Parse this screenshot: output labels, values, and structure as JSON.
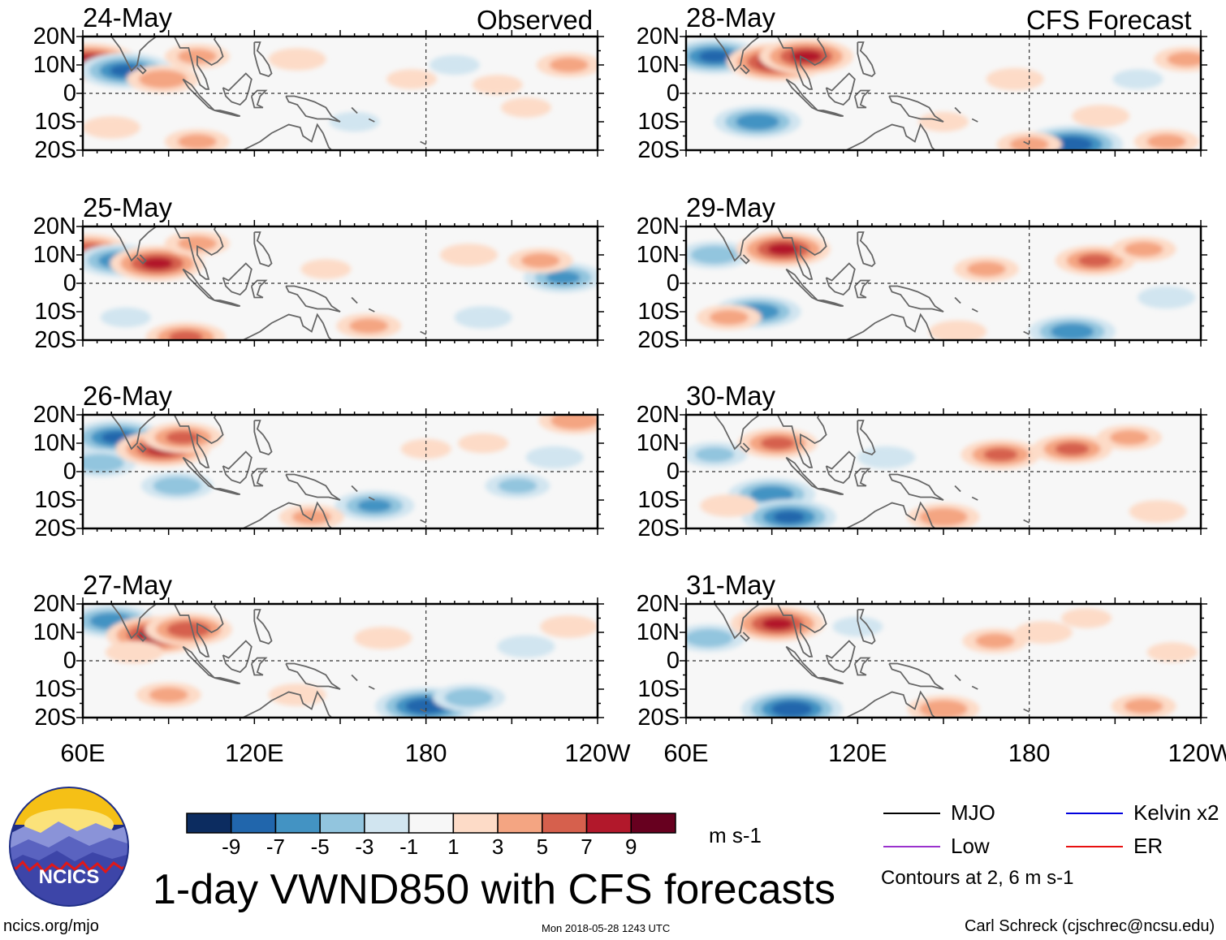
{
  "chart_data": {
    "type": "heatmap",
    "title": "1-day VWND850 with CFS forecasts",
    "units": "m s-1",
    "left_column_label": "Observed",
    "right_column_label": "CFS Forecast",
    "latitude_ticks": [
      "20N",
      "10N",
      "0",
      "10S",
      "20S"
    ],
    "longitude_ticks": [
      "60E",
      "120E",
      "180",
      "120W"
    ],
    "lat_range": [
      -20,
      20
    ],
    "lon_range": [
      60,
      240
    ],
    "colorbar": {
      "ticks": [
        "-9",
        "-7",
        "-5",
        "-3",
        "-1",
        "1",
        "3",
        "5",
        "7",
        "9"
      ],
      "colors": [
        "#0c2c60",
        "#2166ac",
        "#4393c3",
        "#92c5de",
        "#d1e5f0",
        "#f7f7f7",
        "#fddbc7",
        "#f4a582",
        "#d6604d",
        "#b2182b",
        "#67001f"
      ]
    },
    "panels": [
      {
        "date": "24-May",
        "column": "Observed",
        "row": 0,
        "features": [
          {
            "lon": 62,
            "lat": 11,
            "value": 9
          },
          {
            "lon": 75,
            "lat": 8,
            "value": -8
          },
          {
            "lon": 88,
            "lat": 5,
            "value": 5
          },
          {
            "lon": 100,
            "lat": 13,
            "value": 4
          },
          {
            "lon": 135,
            "lat": 12,
            "value": 3
          },
          {
            "lon": 175,
            "lat": 5,
            "value": 2
          },
          {
            "lon": 230,
            "lat": 10,
            "value": 4
          },
          {
            "lon": 205,
            "lat": 3,
            "value": 2
          },
          {
            "lon": 70,
            "lat": -12,
            "value": 3
          },
          {
            "lon": 100,
            "lat": -17,
            "value": 4
          },
          {
            "lon": 155,
            "lat": -10,
            "value": -2
          },
          {
            "lon": 215,
            "lat": -5,
            "value": 2
          },
          {
            "lon": 190,
            "lat": 10,
            "value": -2
          }
        ]
      },
      {
        "date": "25-May",
        "column": "Observed",
        "row": 1,
        "features": [
          {
            "lon": 62,
            "lat": 12,
            "value": 6
          },
          {
            "lon": 73,
            "lat": 8,
            "value": -7
          },
          {
            "lon": 86,
            "lat": 7,
            "value": 8
          },
          {
            "lon": 100,
            "lat": 14,
            "value": 4
          },
          {
            "lon": 228,
            "lat": 2,
            "value": -6
          },
          {
            "lon": 195,
            "lat": 10,
            "value": 3
          },
          {
            "lon": 220,
            "lat": 8,
            "value": 4
          },
          {
            "lon": 96,
            "lat": -19,
            "value": 6
          },
          {
            "lon": 160,
            "lat": -15,
            "value": 4
          },
          {
            "lon": 145,
            "lat": 5,
            "value": 2
          },
          {
            "lon": 200,
            "lat": -12,
            "value": -3
          },
          {
            "lon": 75,
            "lat": -12,
            "value": -2
          }
        ]
      },
      {
        "date": "26-May",
        "column": "Observed",
        "row": 2,
        "features": [
          {
            "lon": 72,
            "lat": 12,
            "value": -8
          },
          {
            "lon": 66,
            "lat": 3,
            "value": -5
          },
          {
            "lon": 88,
            "lat": 8,
            "value": 8
          },
          {
            "lon": 95,
            "lat": 12,
            "value": 6
          },
          {
            "lon": 93,
            "lat": -5,
            "value": -5
          },
          {
            "lon": 162,
            "lat": -12,
            "value": -6
          },
          {
            "lon": 212,
            "lat": -5,
            "value": -4
          },
          {
            "lon": 232,
            "lat": 18,
            "value": 5
          },
          {
            "lon": 140,
            "lat": -16,
            "value": 4
          },
          {
            "lon": 225,
            "lat": 5,
            "value": -3
          },
          {
            "lon": 180,
            "lat": 8,
            "value": 2
          },
          {
            "lon": 200,
            "lat": 10,
            "value": 2
          }
        ]
      },
      {
        "date": "27-May",
        "column": "Observed",
        "row": 3,
        "features": [
          {
            "lon": 70,
            "lat": 14,
            "value": -7
          },
          {
            "lon": 86,
            "lat": 9,
            "value": 9
          },
          {
            "lon": 97,
            "lat": 11,
            "value": 7
          },
          {
            "lon": 78,
            "lat": 3,
            "value": 3
          },
          {
            "lon": 180,
            "lat": -16,
            "value": -9
          },
          {
            "lon": 195,
            "lat": -13,
            "value": -5
          },
          {
            "lon": 165,
            "lat": 8,
            "value": 3
          },
          {
            "lon": 215,
            "lat": 5,
            "value": -3
          },
          {
            "lon": 90,
            "lat": -12,
            "value": 4
          },
          {
            "lon": 230,
            "lat": 12,
            "value": 3
          },
          {
            "lon": 135,
            "lat": -12,
            "value": 3
          }
        ]
      },
      {
        "date": "28-May",
        "column": "CFS Forecast",
        "row": 0,
        "features": [
          {
            "lon": 70,
            "lat": 13,
            "value": -8
          },
          {
            "lon": 92,
            "lat": 11,
            "value": 9
          },
          {
            "lon": 102,
            "lat": 13,
            "value": 8
          },
          {
            "lon": 85,
            "lat": -10,
            "value": -7
          },
          {
            "lon": 195,
            "lat": -18,
            "value": -9
          },
          {
            "lon": 180,
            "lat": -18,
            "value": 4
          },
          {
            "lon": 175,
            "lat": 5,
            "value": 3
          },
          {
            "lon": 205,
            "lat": -8,
            "value": 3
          },
          {
            "lon": 228,
            "lat": -17,
            "value": 4
          },
          {
            "lon": 235,
            "lat": 12,
            "value": 4
          },
          {
            "lon": 150,
            "lat": -10,
            "value": 2
          },
          {
            "lon": 218,
            "lat": 5,
            "value": -2
          }
        ]
      },
      {
        "date": "29-May",
        "column": "CFS Forecast",
        "row": 1,
        "features": [
          {
            "lon": 70,
            "lat": 10,
            "value": -5
          },
          {
            "lon": 94,
            "lat": 12,
            "value": 8
          },
          {
            "lon": 85,
            "lat": -10,
            "value": -7
          },
          {
            "lon": 195,
            "lat": -17,
            "value": -7
          },
          {
            "lon": 203,
            "lat": 8,
            "value": 6
          },
          {
            "lon": 165,
            "lat": 5,
            "value": 4
          },
          {
            "lon": 75,
            "lat": -12,
            "value": 4
          },
          {
            "lon": 155,
            "lat": -17,
            "value": 3
          },
          {
            "lon": 220,
            "lat": 12,
            "value": 4
          },
          {
            "lon": 228,
            "lat": -5,
            "value": -3
          }
        ]
      },
      {
        "date": "30-May",
        "column": "CFS Forecast",
        "row": 2,
        "features": [
          {
            "lon": 70,
            "lat": 6,
            "value": -4
          },
          {
            "lon": 92,
            "lat": 10,
            "value": 6
          },
          {
            "lon": 90,
            "lat": -8,
            "value": -7
          },
          {
            "lon": 96,
            "lat": -16,
            "value": -8
          },
          {
            "lon": 170,
            "lat": 6,
            "value": 6
          },
          {
            "lon": 195,
            "lat": 8,
            "value": 6
          },
          {
            "lon": 215,
            "lat": 12,
            "value": 4
          },
          {
            "lon": 150,
            "lat": -16,
            "value": 5
          },
          {
            "lon": 75,
            "lat": -12,
            "value": 3
          },
          {
            "lon": 225,
            "lat": -14,
            "value": 3
          },
          {
            "lon": 130,
            "lat": 5,
            "value": -3
          }
        ]
      },
      {
        "date": "31-May",
        "column": "CFS Forecast",
        "row": 3,
        "features": [
          {
            "lon": 68,
            "lat": 8,
            "value": -5
          },
          {
            "lon": 92,
            "lat": 13,
            "value": 8
          },
          {
            "lon": 97,
            "lat": -17,
            "value": -9
          },
          {
            "lon": 168,
            "lat": 7,
            "value": 4
          },
          {
            "lon": 185,
            "lat": 10,
            "value": 3
          },
          {
            "lon": 150,
            "lat": -17,
            "value": 5
          },
          {
            "lon": 220,
            "lat": -16,
            "value": 4
          },
          {
            "lon": 200,
            "lat": 15,
            "value": 2
          },
          {
            "lon": 120,
            "lat": 12,
            "value": -2
          },
          {
            "lon": 230,
            "lat": 3,
            "value": 2
          }
        ]
      }
    ],
    "contour_legend": [
      {
        "label": "MJO",
        "color": "#000000"
      },
      {
        "label": "Low",
        "color": "#9a32cd"
      },
      {
        "label": "Kelvin x2",
        "color": "#0000dd"
      },
      {
        "label": "ER",
        "color": "#e81010"
      }
    ],
    "contour_note": "Contours at 2, 6 m s-1"
  },
  "branding": {
    "logo_text": "NCICS",
    "url": "ncics.org/mjo",
    "timestamp": "Mon 2018-05-28 1243 UTC",
    "credit": "Carl Schreck (cjschrec@ncsu.edu)"
  }
}
